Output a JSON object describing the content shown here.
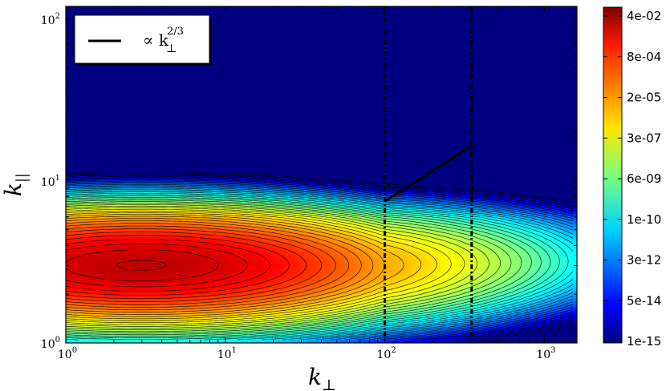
{
  "chart_data": {
    "type": "heatmap",
    "subtype": "filled-contour",
    "x_scale": "log",
    "y_scale": "log",
    "xlim": [
      1,
      1600
    ],
    "ylim": [
      1,
      120
    ],
    "xlabel": "k",
    "xlabel_sub": "⊥",
    "ylabel": "k",
    "ylabel_sub": "||",
    "x_ticks": [
      {
        "value": 1,
        "label_base": "10",
        "label_exp": "0"
      },
      {
        "value": 10,
        "label_base": "10",
        "label_exp": "1"
      },
      {
        "value": 100,
        "label_base": "10",
        "label_exp": "2"
      },
      {
        "value": 1000,
        "label_base": "10",
        "label_exp": "3"
      }
    ],
    "y_ticks": [
      {
        "value": 1,
        "label_base": "10",
        "label_exp": "0"
      },
      {
        "value": 10,
        "label_base": "10",
        "label_exp": "1"
      },
      {
        "value": 100,
        "label_base": "10",
        "label_exp": "2"
      }
    ],
    "colorbar": {
      "colormap": "jet",
      "scale": "log",
      "labels": [
        "4e-02",
        "8e-04",
        "2e-05",
        "3e-07",
        "6e-09",
        "1e-10",
        "3e-12",
        "5e-14",
        "1e-15"
      ]
    },
    "peak": {
      "x": 3,
      "y": 3
    },
    "vertical_lines": [
      {
        "x": 100
      },
      {
        "x": 350
      }
    ],
    "reference_line": {
      "x": [
        100,
        350
      ],
      "y": [
        7.5,
        16.5
      ]
    },
    "legend": {
      "position": "top-left",
      "prefix": "∝ k",
      "sub": "⊥",
      "sup": "2/3"
    },
    "grid": false
  }
}
